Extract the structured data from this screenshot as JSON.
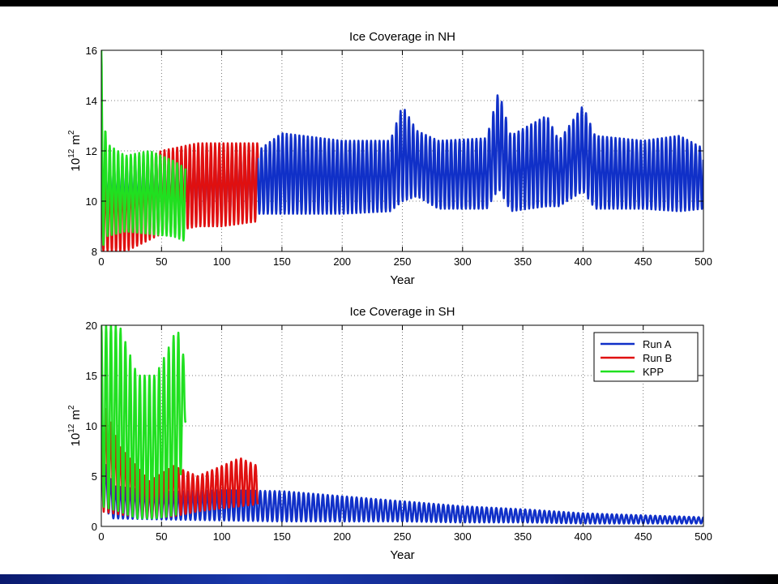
{
  "chart_data": [
    {
      "type": "line",
      "title": "Ice Coverage in NH",
      "xlabel": "Year",
      "ylabel_base": "10",
      "ylabel_exp": "12",
      "ylabel_unit": "m",
      "ylabel_unit_exp": "2",
      "xlim": [
        0,
        500
      ],
      "ylim": [
        8,
        16
      ],
      "xticks": [
        0,
        50,
        100,
        150,
        200,
        250,
        300,
        350,
        400,
        450,
        500
      ],
      "yticks": [
        8,
        10,
        12,
        14,
        16
      ],
      "grid": true,
      "series": [
        {
          "name": "Run A",
          "color": "#1030c8",
          "x_range": [
            0,
            500
          ],
          "oscillation_period_years": 3.5,
          "envelope": [
            [
              0,
              9.8,
              11.4
            ],
            [
              50,
              9.4,
              11.6
            ],
            [
              100,
              9.4,
              11.8
            ],
            [
              130,
              9.5,
              12.0
            ],
            [
              150,
              9.5,
              12.7
            ],
            [
              200,
              9.5,
              12.4
            ],
            [
              240,
              9.6,
              12.4
            ],
            [
              250,
              10.0,
              13.8
            ],
            [
              262,
              10.2,
              12.8
            ],
            [
              280,
              9.7,
              12.4
            ],
            [
              320,
              9.7,
              12.5
            ],
            [
              330,
              10.5,
              14.4
            ],
            [
              340,
              9.6,
              12.6
            ],
            [
              370,
              9.8,
              13.4
            ],
            [
              380,
              9.8,
              12.4
            ],
            [
              400,
              10.4,
              13.8
            ],
            [
              410,
              9.7,
              12.6
            ],
            [
              450,
              9.7,
              12.4
            ],
            [
              480,
              9.6,
              12.6
            ],
            [
              500,
              9.7,
              12.1
            ]
          ]
        },
        {
          "name": "Run B",
          "color": "#e01010",
          "x_range": [
            0,
            130
          ],
          "oscillation_period_years": 3.5,
          "envelope": [
            [
              0,
              8.0,
              11.0
            ],
            [
              20,
              8.0,
              11.3
            ],
            [
              50,
              8.7,
              12.0
            ],
            [
              80,
              9.0,
              12.3
            ],
            [
              100,
              9.0,
              12.3
            ],
            [
              130,
              9.2,
              12.3
            ]
          ]
        },
        {
          "name": "KPP",
          "color": "#20e020",
          "x_range": [
            0,
            70
          ],
          "oscillation_period_years": 3.5,
          "envelope": [
            [
              0,
              8.0,
              16.0
            ],
            [
              4,
              8.6,
              12.3
            ],
            [
              20,
              8.8,
              11.8
            ],
            [
              40,
              8.7,
              12.0
            ],
            [
              60,
              8.6,
              11.6
            ],
            [
              70,
              8.4,
              11.3
            ]
          ]
        }
      ]
    },
    {
      "type": "line",
      "title": "Ice Coverage in SH",
      "xlabel": "Year",
      "ylabel_base": "10",
      "ylabel_exp": "12",
      "ylabel_unit": "m",
      "ylabel_unit_exp": "2",
      "xlim": [
        0,
        500
      ],
      "ylim": [
        0,
        20
      ],
      "xticks": [
        0,
        50,
        100,
        150,
        200,
        250,
        300,
        350,
        400,
        450,
        500
      ],
      "yticks": [
        0,
        5,
        10,
        15,
        20
      ],
      "grid": true,
      "legend": {
        "placement": "top-right",
        "entries": [
          "Run A",
          "Run B",
          "KPP"
        ]
      },
      "series": [
        {
          "name": "Run A",
          "color": "#1030c8",
          "x_range": [
            0,
            500
          ],
          "oscillation_period_years": 4,
          "envelope": [
            [
              0,
              2.0,
              7.5
            ],
            [
              10,
              0.8,
              4.0
            ],
            [
              50,
              0.7,
              3.4
            ],
            [
              100,
              0.6,
              3.6
            ],
            [
              150,
              0.5,
              3.5
            ],
            [
              200,
              0.5,
              3.0
            ],
            [
              250,
              0.5,
              2.5
            ],
            [
              300,
              0.4,
              2.0
            ],
            [
              350,
              0.4,
              1.7
            ],
            [
              400,
              0.3,
              1.3
            ],
            [
              450,
              0.3,
              1.1
            ],
            [
              500,
              0.3,
              0.9
            ]
          ]
        },
        {
          "name": "Run B",
          "color": "#e01010",
          "x_range": [
            0,
            130
          ],
          "oscillation_period_years": 4,
          "envelope": [
            [
              0,
              1.5,
              13.0
            ],
            [
              15,
              1.2,
              8.0
            ],
            [
              40,
              0.8,
              4.5
            ],
            [
              60,
              1.0,
              6.0
            ],
            [
              80,
              1.5,
              5.0
            ],
            [
              100,
              1.8,
              6.0
            ],
            [
              115,
              2.0,
              6.8
            ],
            [
              130,
              2.2,
              6.0
            ]
          ]
        },
        {
          "name": "KPP",
          "color": "#20e020",
          "x_range": [
            0,
            70
          ],
          "oscillation_period_years": 4,
          "envelope": [
            [
              0,
              2.0,
              20.0
            ],
            [
              15,
              1.5,
              20.0
            ],
            [
              30,
              0.8,
              15.0
            ],
            [
              45,
              0.8,
              15.0
            ],
            [
              55,
              1.0,
              17.5
            ],
            [
              63,
              1.2,
              19.8
            ],
            [
              70,
              10.5,
              16.0
            ]
          ]
        }
      ]
    }
  ]
}
